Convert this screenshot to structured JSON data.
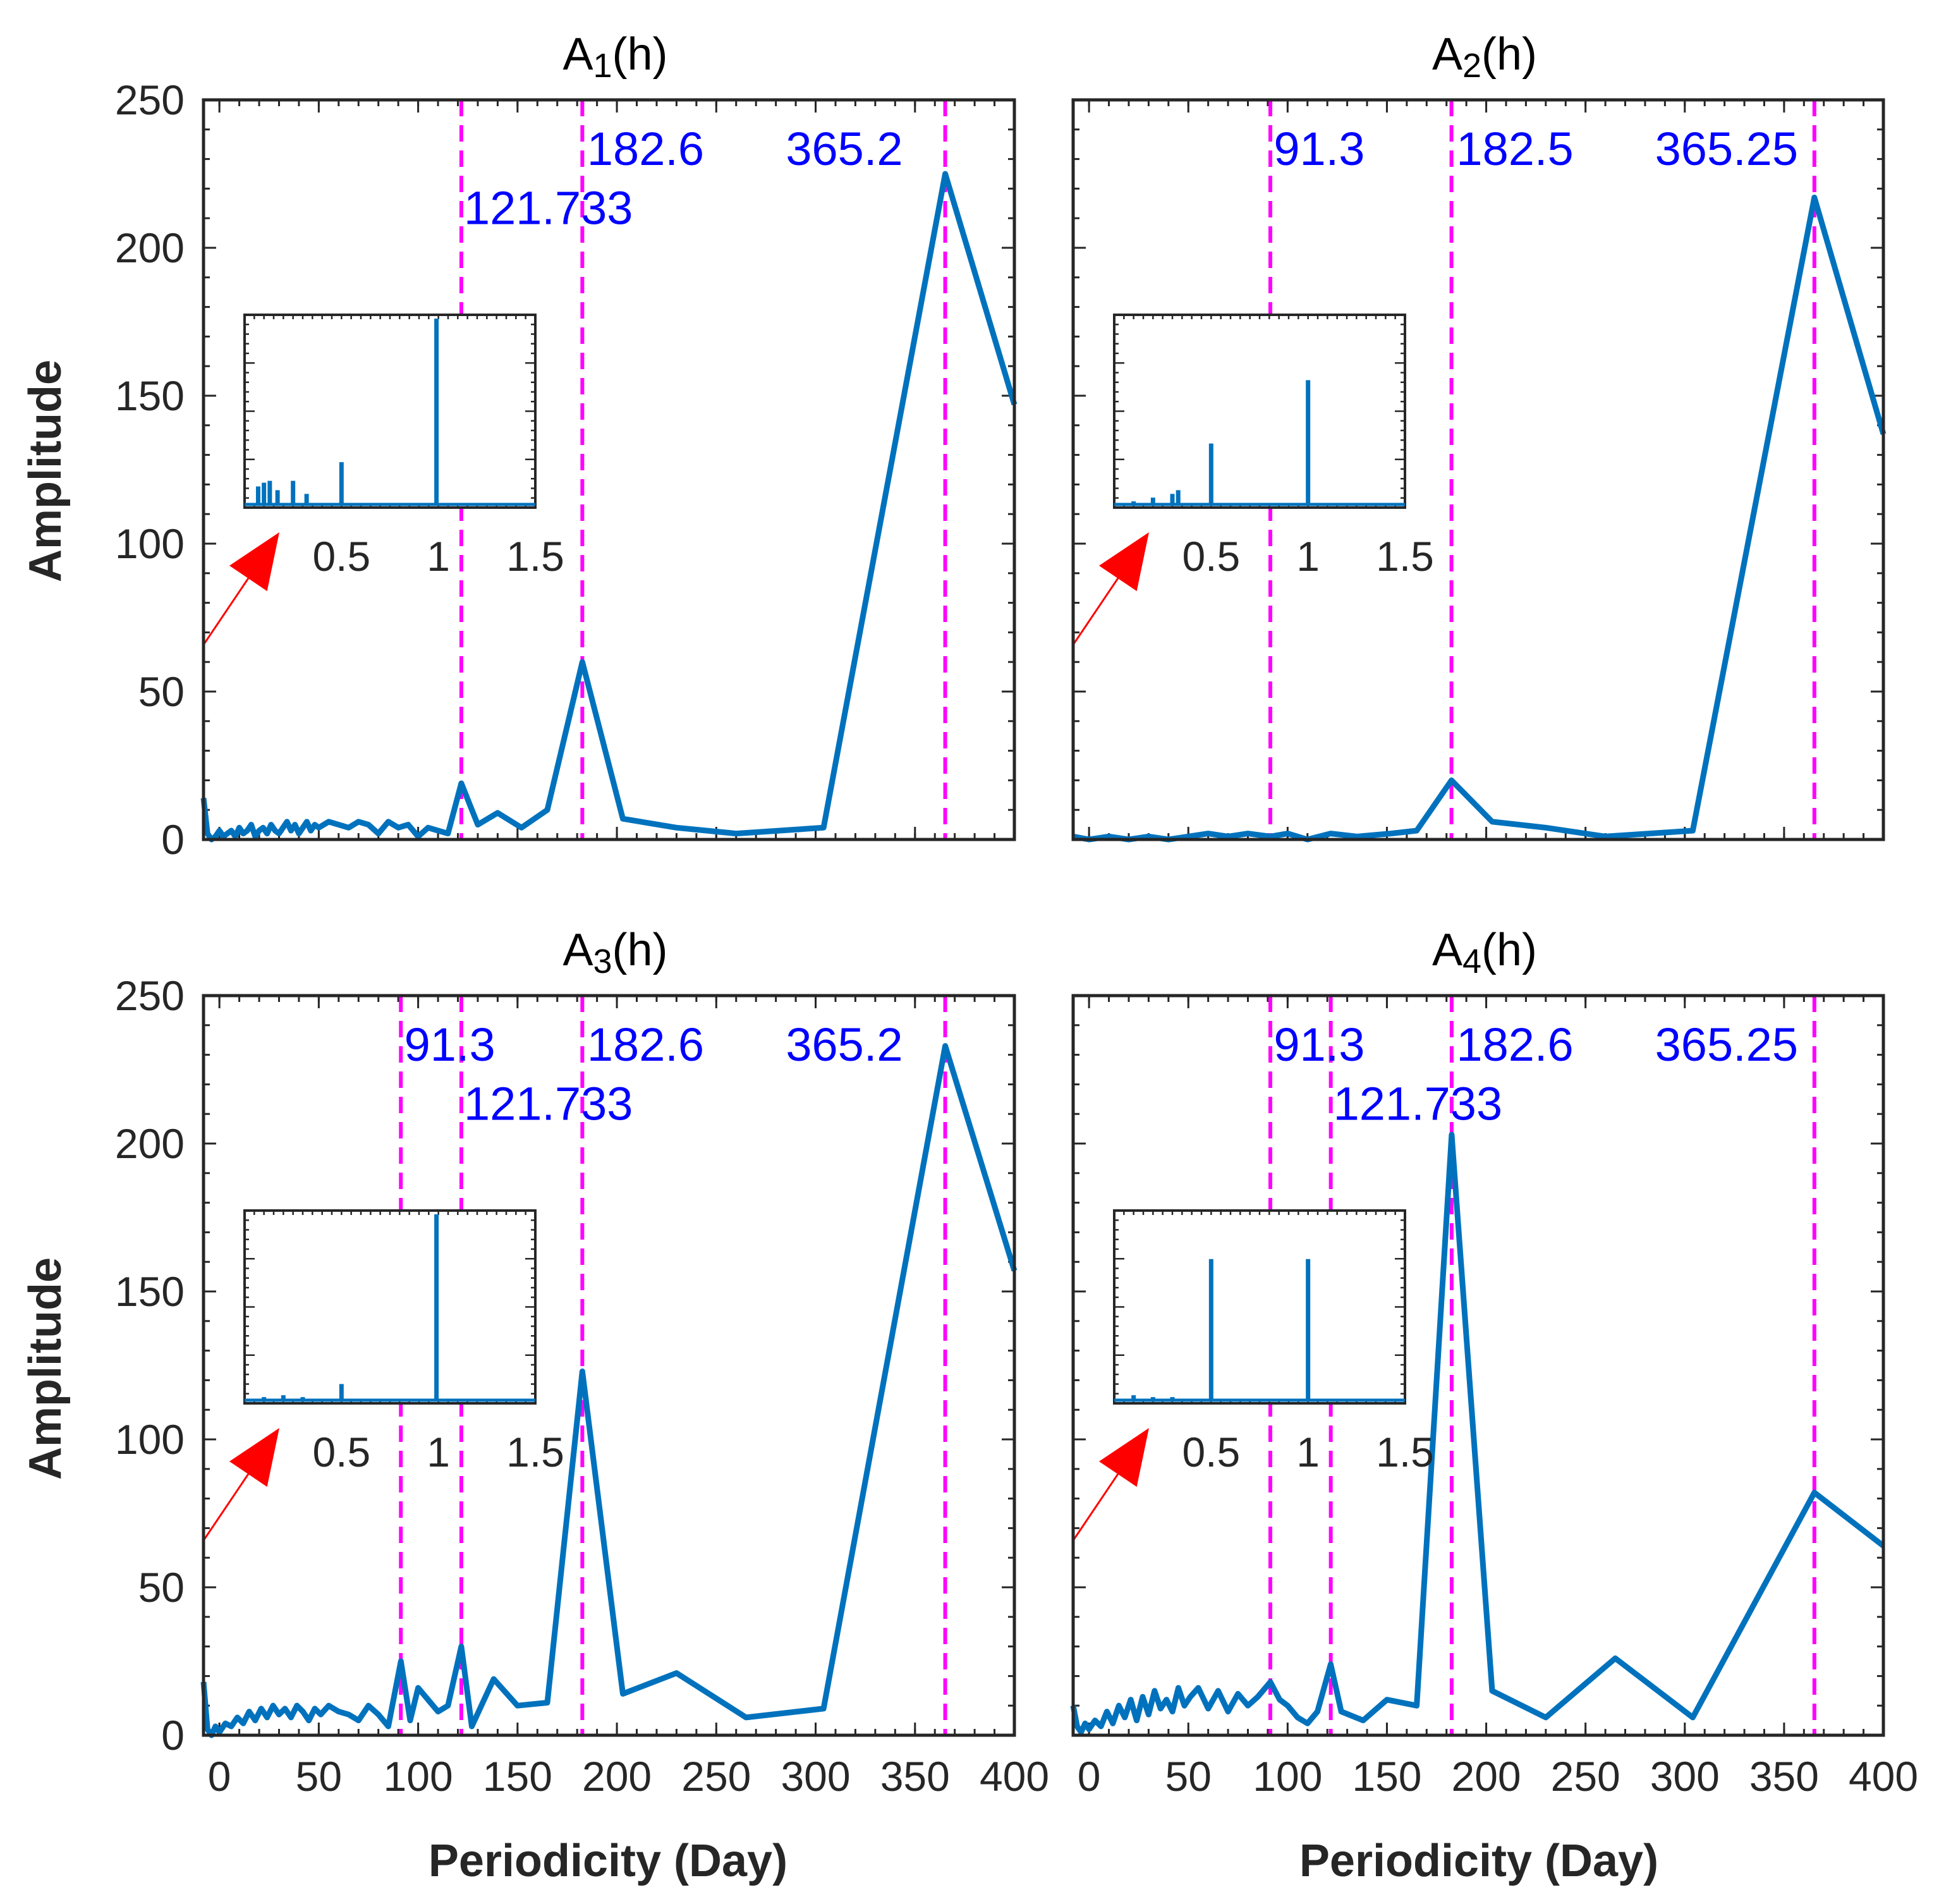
{
  "figure": {
    "ylabel": "Amplitude",
    "xlabel": "Periodicity (Day)",
    "colors": {
      "line": "#0072BD",
      "marker": "#FF00FF",
      "peak_label": "#0000FF",
      "arrow": "#FF0000",
      "axes": "#262626"
    }
  },
  "chart_data": [
    {
      "type": "line",
      "title_main": "A",
      "title_sub": "1",
      "title_tail": "(h)",
      "xlim": [
        -8,
        400
      ],
      "ylim": [
        0,
        250
      ],
      "xticks": [
        0,
        50,
        100,
        150,
        200,
        250,
        300,
        350,
        400
      ],
      "yticks": [
        0,
        50,
        100,
        150,
        200,
        250
      ],
      "show_x_tick_labels": false,
      "show_y_tick_labels": true,
      "series": [
        {
          "x": [
            -8,
            -6,
            -4,
            -2,
            0,
            2,
            4,
            6,
            8,
            10,
            12,
            14,
            16,
            18,
            20,
            22,
            24,
            26,
            28,
            30,
            32,
            34,
            36,
            38,
            40,
            42,
            44,
            46,
            48,
            50,
            55,
            60,
            65,
            70,
            75,
            80,
            85,
            90,
            95,
            100,
            105,
            110,
            115,
            121.7,
            130,
            140,
            152,
            165,
            182.6,
            203,
            230,
            260,
            304,
            365.2,
            400
          ],
          "y": [
            14,
            2,
            0,
            1,
            3,
            1,
            2,
            3,
            1,
            4,
            2,
            3,
            5,
            1,
            3,
            4,
            2,
            5,
            3,
            2,
            4,
            6,
            3,
            5,
            2,
            4,
            6,
            3,
            5,
            4,
            6,
            5,
            4,
            6,
            5,
            2,
            6,
            4,
            5,
            1,
            4,
            3,
            2,
            19,
            5,
            9,
            4,
            10,
            60,
            7,
            4,
            2,
            4,
            225,
            147
          ]
        }
      ],
      "vlines": [
        121.733,
        182.6,
        365.2
      ],
      "peak_labels": [
        {
          "text": "182.6",
          "x": 185,
          "y": 228
        },
        {
          "text": "365.2",
          "x": 285,
          "y": 228
        },
        {
          "text": "121.733",
          "x": 123,
          "y": 208
        }
      ],
      "inset": {
        "xticks": [
          "0.5",
          "1",
          "1.5"
        ],
        "xtick_values": [
          0.5,
          1,
          1.5
        ],
        "xlim": [
          0,
          1.5
        ],
        "spikes": [
          [
            0.07,
            0.1
          ],
          [
            0.1,
            0.12
          ],
          [
            0.13,
            0.13
          ],
          [
            0.17,
            0.08
          ],
          [
            0.25,
            0.13
          ],
          [
            0.32,
            0.06
          ],
          [
            0.5,
            0.23
          ],
          [
            0.99,
            1.0
          ]
        ]
      }
    },
    {
      "type": "line",
      "title_main": "A",
      "title_sub": "2",
      "title_tail": "(h)",
      "xlim": [
        -8,
        400
      ],
      "ylim": [
        0,
        250
      ],
      "xticks": [
        0,
        50,
        100,
        150,
        200,
        250,
        300,
        350,
        400
      ],
      "yticks": [
        0,
        50,
        100,
        150,
        200,
        250
      ],
      "show_x_tick_labels": false,
      "show_y_tick_labels": false,
      "series": [
        {
          "x": [
            -8,
            0,
            10,
            20,
            30,
            40,
            50,
            60,
            70,
            80,
            91.3,
            100,
            110,
            121.7,
            135,
            152,
            165,
            182.5,
            203,
            230,
            260,
            304,
            365.25,
            400
          ],
          "y": [
            1,
            0,
            1,
            0,
            1,
            0,
            1,
            2,
            1,
            2,
            1,
            2,
            0,
            2,
            1,
            2,
            3,
            20,
            6,
            4,
            1,
            3,
            217,
            137
          ]
        }
      ],
      "vlines": [
        91.3,
        182.5,
        365.25
      ],
      "peak_labels": [
        {
          "text": "91.3",
          "x": 93,
          "y": 228
        },
        {
          "text": "182.5",
          "x": 185,
          "y": 228
        },
        {
          "text": "365.25",
          "x": 285,
          "y": 228
        }
      ],
      "inset": {
        "xticks": [
          "0.5",
          "1",
          "1.5"
        ],
        "xtick_values": [
          0.5,
          1,
          1.5
        ],
        "xlim": [
          0,
          1.5
        ],
        "spikes": [
          [
            0.1,
            0.02
          ],
          [
            0.2,
            0.04
          ],
          [
            0.3,
            0.06
          ],
          [
            0.33,
            0.08
          ],
          [
            0.5,
            0.33
          ],
          [
            1.0,
            0.67
          ]
        ]
      }
    },
    {
      "type": "line",
      "title_main": "A",
      "title_sub": "3",
      "title_tail": "(h)",
      "xlim": [
        -8,
        400
      ],
      "ylim": [
        0,
        250
      ],
      "xticks": [
        0,
        50,
        100,
        150,
        200,
        250,
        300,
        350,
        400
      ],
      "yticks": [
        0,
        50,
        100,
        150,
        200,
        250
      ],
      "show_x_tick_labels": true,
      "show_y_tick_labels": true,
      "series": [
        {
          "x": [
            -8,
            -6,
            -4,
            -2,
            0,
            3,
            6,
            9,
            12,
            15,
            18,
            21,
            24,
            27,
            30,
            33,
            36,
            39,
            42,
            45,
            48,
            51,
            55,
            60,
            65,
            70,
            75,
            80,
            85,
            91.3,
            96,
            100,
            105,
            110,
            115,
            121.7,
            127,
            138,
            150,
            165,
            182.6,
            203,
            230,
            265,
            304,
            365.2,
            400
          ],
          "y": [
            18,
            2,
            0,
            3,
            1,
            4,
            3,
            6,
            4,
            8,
            5,
            9,
            6,
            10,
            7,
            9,
            6,
            10,
            8,
            5,
            9,
            7,
            10,
            8,
            7,
            5,
            10,
            7,
            3,
            25,
            5,
            16,
            12,
            8,
            10,
            30,
            3,
            19,
            10,
            11,
            123,
            14,
            21,
            6,
            9,
            233,
            157
          ]
        }
      ],
      "vlines": [
        91.3,
        121.733,
        182.6,
        365.2
      ],
      "peak_labels": [
        {
          "text": "91.3",
          "x": 93,
          "y": 228
        },
        {
          "text": "182.6",
          "x": 185,
          "y": 228
        },
        {
          "text": "365.2",
          "x": 285,
          "y": 228
        },
        {
          "text": "121.733",
          "x": 123,
          "y": 208
        }
      ],
      "inset": {
        "xticks": [
          "0.5",
          "1",
          "1.5"
        ],
        "xtick_values": [
          0.5,
          1,
          1.5
        ],
        "xlim": [
          0,
          1.5
        ],
        "spikes": [
          [
            0.1,
            0.02
          ],
          [
            0.2,
            0.03
          ],
          [
            0.3,
            0.02
          ],
          [
            0.5,
            0.09
          ],
          [
            0.99,
            1.0
          ]
        ]
      }
    },
    {
      "type": "line",
      "title_main": "A",
      "title_sub": "4",
      "title_tail": "(h)",
      "xlim": [
        -8,
        400
      ],
      "ylim": [
        0,
        250
      ],
      "xticks": [
        0,
        50,
        100,
        150,
        200,
        250,
        300,
        350,
        400
      ],
      "yticks": [
        0,
        50,
        100,
        150,
        200,
        250
      ],
      "show_x_tick_labels": true,
      "show_y_tick_labels": false,
      "series": [
        {
          "x": [
            -8,
            -6,
            -4,
            -2,
            0,
            3,
            6,
            9,
            12,
            15,
            18,
            21,
            24,
            27,
            30,
            33,
            36,
            39,
            42,
            45,
            48,
            51,
            55,
            60,
            65,
            70,
            75,
            80,
            85,
            91.3,
            96,
            100,
            105,
            110,
            115,
            121.7,
            127,
            138,
            150,
            165,
            182.6,
            203,
            230,
            265,
            304,
            365.25,
            400
          ],
          "y": [
            10,
            3,
            1,
            4,
            2,
            5,
            3,
            8,
            4,
            10,
            6,
            12,
            5,
            13,
            7,
            15,
            9,
            12,
            8,
            16,
            10,
            13,
            16,
            9,
            15,
            8,
            14,
            10,
            13,
            18,
            12,
            10,
            6,
            4,
            8,
            24,
            8,
            5,
            12,
            10,
            203,
            15,
            6,
            26,
            6,
            82,
            64
          ]
        }
      ],
      "vlines": [
        91.3,
        121.733,
        182.6,
        365.25
      ],
      "peak_labels": [
        {
          "text": "91.3",
          "x": 93,
          "y": 228
        },
        {
          "text": "182.6",
          "x": 185,
          "y": 228
        },
        {
          "text": "365.25",
          "x": 285,
          "y": 228
        },
        {
          "text": "121.733",
          "x": 123,
          "y": 208
        }
      ],
      "inset": {
        "xticks": [
          "0.5",
          "1",
          "1.5"
        ],
        "xtick_values": [
          0.5,
          1,
          1.5
        ],
        "xlim": [
          0,
          1.5
        ],
        "spikes": [
          [
            0.1,
            0.03
          ],
          [
            0.2,
            0.02
          ],
          [
            0.3,
            0.02
          ],
          [
            0.5,
            0.76
          ],
          [
            1.0,
            0.76
          ]
        ]
      }
    }
  ]
}
